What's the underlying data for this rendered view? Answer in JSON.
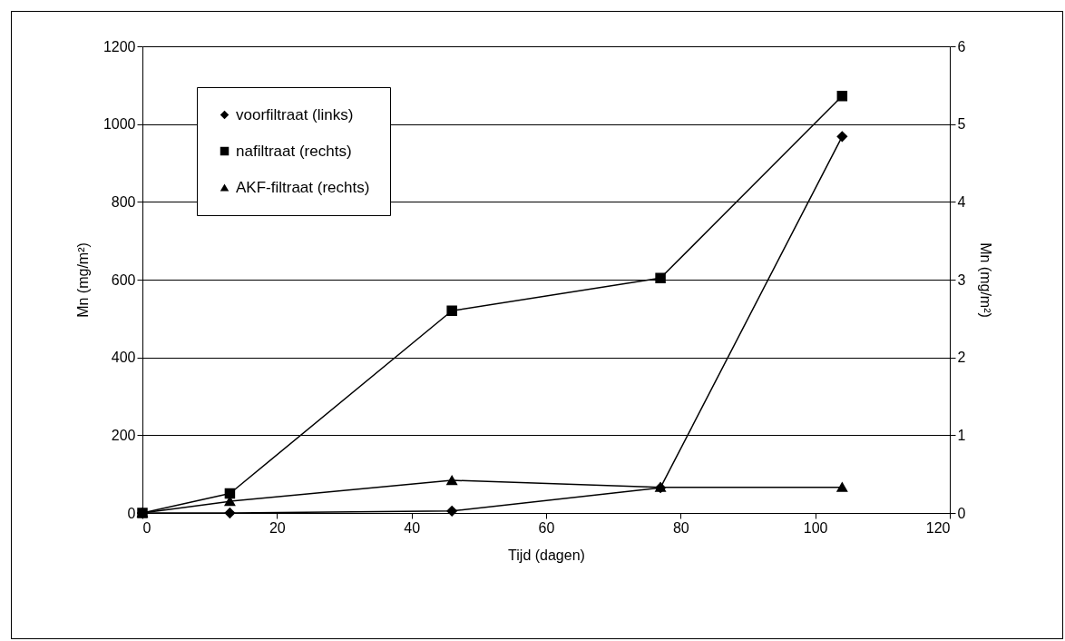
{
  "chart_data": {
    "type": "line",
    "xlabel": "Tijd (dagen)",
    "ylabel": "Mn (mg/m²)",
    "y2label": "Mn (mg/m²)",
    "x": [
      0,
      13,
      46,
      77,
      104
    ],
    "series": [
      {
        "name": "voorfiltraat (links)",
        "color": "#000000",
        "marker": "diamond",
        "values": [
          0,
          0,
          5,
          65,
          968
        ]
      },
      {
        "name": "nafiltraat (rechts)",
        "color": "#000000",
        "marker": "square",
        "axis": "y2",
        "values": [
          0,
          0.25,
          2.6,
          3.02,
          5.36
        ]
      },
      {
        "name": "AKF-filtraat (rechts)",
        "color": "#000000",
        "marker": "triangle",
        "axis": "y2",
        "values": [
          0,
          0.15,
          0.42,
          0.33,
          0.33
        ]
      }
    ],
    "xlim": [
      0,
      120
    ],
    "xticks": [
      0,
      20,
      40,
      60,
      80,
      100,
      120
    ],
    "ylim": [
      0,
      1200
    ],
    "yticks": [
      0,
      200,
      400,
      600,
      800,
      1000,
      1200
    ],
    "y2lim": [
      0,
      6
    ],
    "y2ticks": [
      0,
      1,
      2,
      3,
      4,
      5,
      6
    ],
    "grid": "y",
    "legend": "top left",
    "line_style": "solid"
  }
}
